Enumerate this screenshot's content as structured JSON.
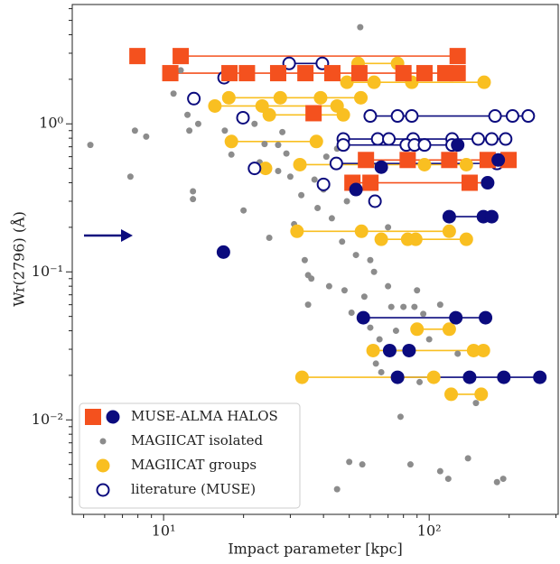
{
  "chart_data": {
    "type": "scatter",
    "x_label": "Impact parameter [kpc]",
    "y_label": "Wr(2796) (Å)",
    "xscale": "log",
    "yscale": "log",
    "xlim": [
      4.53,
      306
    ],
    "ylim": [
      0.0023,
      6.4
    ],
    "xticks": [
      {
        "value": 10,
        "label": "10¹"
      },
      {
        "value": 100,
        "label": "10²"
      }
    ],
    "yticks": [
      {
        "value": 0.01,
        "label": "10⁻²"
      },
      {
        "value": 0.1,
        "label": "10⁻¹"
      },
      {
        "value": 1,
        "label": "10⁰"
      }
    ],
    "xminorticks": [
      5,
      6,
      7,
      8,
      9,
      20,
      30,
      40,
      50,
      60,
      70,
      80,
      90,
      200,
      300
    ],
    "yminorticks": [
      0.003,
      0.004,
      0.005,
      0.006,
      0.007,
      0.008,
      0.009,
      0.02,
      0.03,
      0.04,
      0.05,
      0.06,
      0.07,
      0.08,
      0.09,
      0.2,
      0.3,
      0.4,
      0.5,
      0.6,
      0.7,
      0.8,
      0.9,
      2,
      3,
      4,
      5,
      6
    ],
    "legend": "lower left",
    "series": [
      {
        "name": "MUSE-ALMA HALOS",
        "colors": [
          "#f4511e",
          "#0b0b7e"
        ],
        "marker": "square-circle",
        "groups": [
          {
            "y": 2.87,
            "squares": [
              7.97
            ]
          },
          {
            "y": 2.87,
            "squares": [
              11.6,
              128
            ]
          },
          {
            "y": 2.2,
            "squares": [
              10.6,
              17.7,
              20.6,
              27,
              34.2,
              43.2,
              54.6,
              80,
              96,
              115,
              128
            ]
          },
          {
            "y": 1.18,
            "squares": [
              36.7
            ]
          },
          {
            "y": 0.57,
            "squares": [
              57.8,
              83,
              119,
              166,
              199
            ],
            "circles": [
              182
            ]
          },
          {
            "y": 0.51,
            "circles": [
              66
            ]
          },
          {
            "y": 0.72,
            "circles": [
              128
            ]
          },
          {
            "y": 0.4,
            "squares": [
              51.4,
              60.1,
              142
            ],
            "circles": [
              166
            ]
          },
          {
            "y": 0.36,
            "circles": [
              53
            ]
          },
          {
            "y": 0.236,
            "circles": [
              119,
              160,
              172
            ]
          },
          {
            "y": 0.136,
            "circles": [
              16.8
            ]
          },
          {
            "y": 0.049,
            "circles": [
              56.5,
              126,
              163
            ]
          },
          {
            "y": 0.0294,
            "circles": [
              71,
              84
            ]
          },
          {
            "y": 0.0194,
            "circles": [
              76,
              142,
              191,
              261
            ]
          }
        ]
      },
      {
        "name": "MAGIICAT isolated",
        "color": "#8c8c8c",
        "marker": "small",
        "x": [
          5.3,
          7.5,
          7.8,
          8.6,
          10.4,
          10.9,
          11.6,
          12.3,
          12.5,
          12.9,
          12.9,
          13.5,
          17,
          18,
          20,
          22,
          23,
          24,
          25,
          27,
          27,
          28,
          29,
          30,
          31,
          32,
          33,
          34,
          35,
          36,
          37,
          38,
          40,
          41,
          42,
          43,
          45,
          47,
          48,
          49,
          50,
          51,
          53,
          55,
          56,
          57,
          58,
          60,
          62,
          63,
          65,
          66,
          70,
          72,
          75,
          78,
          80,
          85,
          88,
          92,
          95,
          100,
          110,
          118,
          128,
          140,
          150,
          180,
          190,
          45,
          60,
          70,
          35,
          90,
          110
        ],
        "values": [
          0.72,
          0.44,
          0.9,
          0.82,
          2.35,
          1.6,
          2.3,
          1.15,
          0.9,
          0.35,
          0.31,
          1.0,
          0.9,
          0.62,
          0.26,
          1.0,
          0.55,
          0.73,
          0.17,
          0.72,
          0.48,
          0.88,
          0.63,
          0.44,
          0.21,
          0.55,
          0.33,
          0.12,
          0.095,
          0.09,
          0.42,
          0.27,
          0.36,
          0.6,
          0.08,
          0.23,
          0.68,
          0.16,
          0.075,
          0.3,
          0.0052,
          0.053,
          0.13,
          4.5,
          0.005,
          0.068,
          0.6,
          0.042,
          0.1,
          0.024,
          0.035,
          0.021,
          0.08,
          0.058,
          0.04,
          0.0105,
          0.058,
          0.005,
          0.058,
          0.018,
          0.052,
          0.035,
          0.0045,
          0.004,
          0.028,
          0.0055,
          0.013,
          0.0038,
          0.004,
          0.0034,
          0.12,
          0.2,
          0.06,
          0.075,
          0.06
        ]
      },
      {
        "name": "MAGIICAT groups",
        "color": "#f9bf21",
        "marker": "filled",
        "groups": [
          {
            "y": 2.56,
            "x": [
              54,
              76
            ]
          },
          {
            "y": 1.91,
            "x": [
              49,
              62,
              86,
              161
            ]
          },
          {
            "y": 1.5,
            "x": [
              17.6,
              27.5,
              39,
              55.3
            ]
          },
          {
            "y": 1.32,
            "x": [
              15.6,
              23.5,
              45
            ]
          },
          {
            "y": 1.15,
            "x": [
              25,
              47.5
            ]
          },
          {
            "y": 0.76,
            "x": [
              18,
              37.6
            ]
          },
          {
            "y": 0.53,
            "x": [
              32.6,
              96,
              138
            ]
          },
          {
            "y": 0.5,
            "x": [
              24.2
            ]
          },
          {
            "y": 0.188,
            "x": [
              31.8,
              55.6,
              119
            ]
          },
          {
            "y": 0.166,
            "x": [
              66,
              83,
              89,
              138
            ]
          },
          {
            "y": 0.041,
            "x": [
              90,
              119
            ]
          },
          {
            "y": 0.0294,
            "x": [
              61.5,
              147,
              160
            ]
          },
          {
            "y": 0.0194,
            "x": [
              33.2,
              104
            ]
          },
          {
            "y": 0.0149,
            "x": [
              121,
              157
            ]
          }
        ]
      },
      {
        "name": "literature (MUSE)",
        "color": "#0b0b7e",
        "marker": "open",
        "groups": [
          {
            "y": 2.56,
            "x": [
              29.7,
              39.6
            ]
          },
          {
            "y": 2.05,
            "x": [
              16.9
            ]
          },
          {
            "y": 1.48,
            "x": [
              13
            ]
          },
          {
            "y": 1.1,
            "x": [
              19.9
            ]
          },
          {
            "y": 1.13,
            "x": [
              60,
              76,
              86,
              177,
              206,
              236
            ]
          },
          {
            "y": 0.79,
            "x": [
              47.5,
              64,
              70.5,
              87,
              122,
              153,
              172,
              194
            ]
          },
          {
            "y": 0.72,
            "x": [
              47.5,
              82,
              88,
              96,
              122
            ]
          },
          {
            "y": 0.54,
            "x": [
              44.7,
              180
            ]
          },
          {
            "y": 0.5,
            "x": [
              22
            ]
          },
          {
            "y": 0.39,
            "x": [
              40
            ]
          },
          {
            "y": 0.3,
            "x": [
              62.5
            ]
          }
        ]
      }
    ]
  }
}
